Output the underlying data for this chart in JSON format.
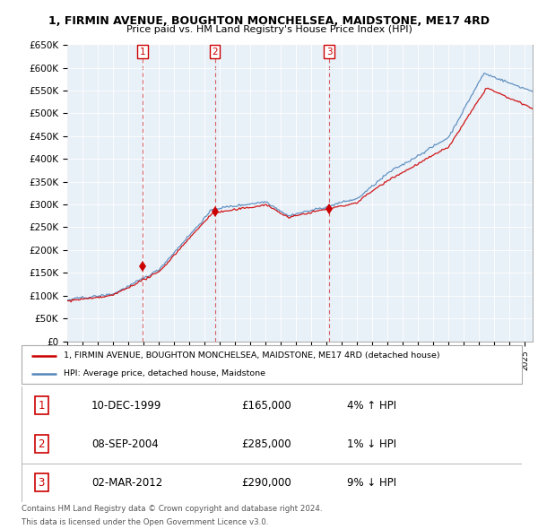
{
  "title": "1, FIRMIN AVENUE, BOUGHTON MONCHELSEA, MAIDSTONE, ME17 4RD",
  "subtitle": "Price paid vs. HM Land Registry's House Price Index (HPI)",
  "ylabel_ticks": [
    "£0",
    "£50K",
    "£100K",
    "£150K",
    "£200K",
    "£250K",
    "£300K",
    "£350K",
    "£400K",
    "£450K",
    "£500K",
    "£550K",
    "£600K",
    "£650K"
  ],
  "ylim": [
    0,
    650000
  ],
  "xlim_start": 1995.0,
  "xlim_end": 2025.5,
  "sale_points": [
    {
      "num": 1,
      "date": "10-DEC-1999",
      "price": 165000,
      "year": 1999.92,
      "hpi_pct": "4%",
      "hpi_dir": "↑"
    },
    {
      "num": 2,
      "date": "08-SEP-2004",
      "price": 285000,
      "year": 2004.67,
      "hpi_pct": "1%",
      "hpi_dir": "↓"
    },
    {
      "num": 3,
      "date": "02-MAR-2012",
      "price": 290000,
      "year": 2012.17,
      "hpi_pct": "9%",
      "hpi_dir": "↓"
    }
  ],
  "legend_line1": "1, FIRMIN AVENUE, BOUGHTON MONCHELSEA, MAIDSTONE, ME17 4RD (detached house)",
  "legend_line2": "HPI: Average price, detached house, Maidstone",
  "footer1": "Contains HM Land Registry data © Crown copyright and database right 2024.",
  "footer2": "This data is licensed under the Open Government Licence v3.0.",
  "red_color": "#cc0000",
  "blue_color": "#5588bb",
  "chart_bg": "#e8f0f8",
  "grid_color": "#ffffff",
  "bg_color": "#ffffff"
}
